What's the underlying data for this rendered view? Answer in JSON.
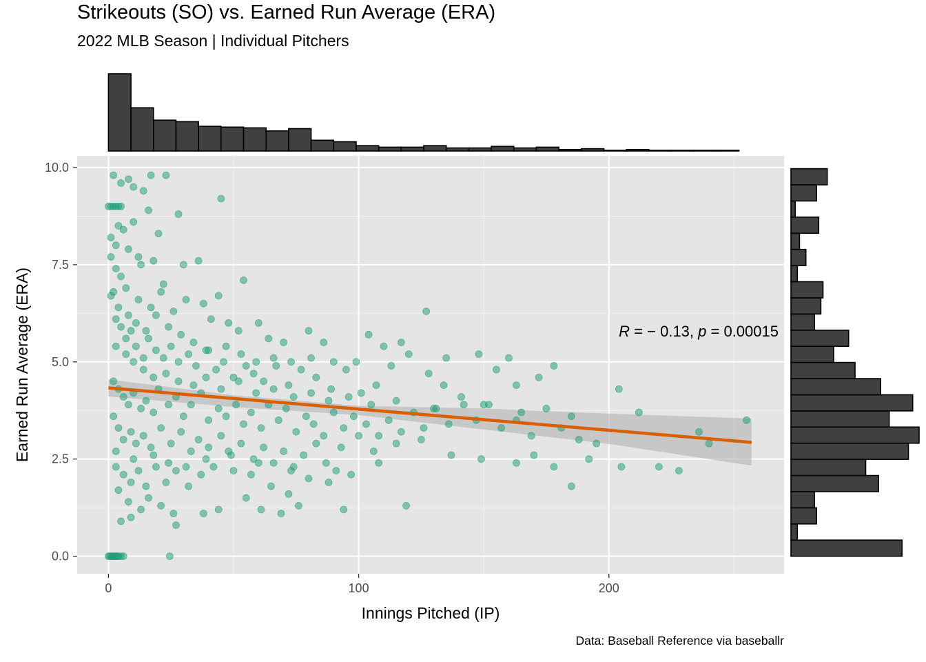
{
  "chart_data": {
    "type": "scatter",
    "title": "Strikeouts (SO) vs. Earned Run Average (ERA)",
    "subtitle": "2022 MLB Season | Individual Pitchers",
    "xlabel": "Innings Pitched (IP)",
    "ylabel": "Earned Run Average (ERA)",
    "caption": "Data: Baseball Reference via baseballr",
    "xlim": [
      -12.5,
      270
    ],
    "ylim": [
      -0.45,
      10.3
    ],
    "x_ticks": [
      0,
      100,
      200
    ],
    "x_tick_labels": [
      "0",
      "100",
      "200"
    ],
    "y_ticks": [
      0,
      2.5,
      5,
      7.5,
      10
    ],
    "y_tick_labels": [
      "0.0",
      "2.5",
      "5.0",
      "7.5",
      "10.0"
    ],
    "grid": true,
    "point_color": "#1b9e77",
    "fit_line_color": "#d95f02",
    "histogram_fill": "#404040",
    "panel_background": "#e5e5e5",
    "annotation": {
      "r_symbol": "R",
      "r_text": " = − 0.13, ",
      "p_symbol": "p",
      "p_text": " = 0.00015"
    },
    "fit_line": {
      "x": [
        0,
        257
      ],
      "y": [
        4.33,
        2.93
      ]
    },
    "confidence_band": {
      "x": [
        0,
        50,
        100,
        150,
        200,
        257
      ],
      "upper": [
        4.55,
        4.14,
        3.87,
        3.8,
        3.67,
        3.54
      ],
      "lower": [
        4.11,
        3.84,
        3.63,
        3.26,
        2.89,
        2.33
      ]
    },
    "x_histogram": {
      "bin_edges": [
        0,
        9,
        18,
        27,
        36,
        45,
        54,
        63,
        72,
        81,
        90,
        99,
        108,
        117,
        126,
        135,
        144,
        153,
        162,
        171,
        180,
        189,
        198,
        207,
        216,
        225,
        234,
        243,
        252,
        257
      ],
      "counts": [
        100,
        56,
        40,
        38,
        32,
        31,
        30,
        26,
        29,
        14,
        12,
        7,
        5,
        5,
        7,
        4,
        4,
        6,
        4,
        5,
        2,
        3,
        1,
        2,
        1,
        1,
        1,
        1,
        0
      ]
    },
    "y_histogram": {
      "bin_edges": [
        0,
        0.67,
        1.34,
        2.01,
        2.68,
        3.35,
        4.02,
        4.69,
        5.36,
        6.03,
        6.7,
        7.37,
        8.04,
        8.71,
        9.38,
        10.05
      ],
      "counts_fine": [
        52,
        3,
        12,
        11,
        41,
        35,
        55,
        60,
        46,
        57,
        42,
        30,
        20,
        27,
        11,
        14,
        15,
        3,
        7,
        4,
        13,
        2,
        12,
        17
      ]
    },
    "points": {
      "zero_ip_era9": 9.0,
      "zero_era_cluster": [
        [
          0,
          0
        ],
        [
          0.5,
          0
        ],
        [
          1,
          0
        ],
        [
          1.5,
          0
        ],
        [
          2,
          0
        ],
        [
          2.5,
          0
        ],
        [
          3,
          0
        ],
        [
          3.5,
          0
        ],
        [
          4,
          0
        ],
        [
          5,
          0
        ],
        [
          6,
          0
        ],
        [
          24.5,
          0
        ]
      ],
      "scattered": [
        [
          2,
          9.8
        ],
        [
          5,
          9.6
        ],
        [
          8,
          9.7
        ],
        [
          10,
          9.5
        ],
        [
          14,
          9.4
        ],
        [
          17,
          9.8
        ],
        [
          23,
          9.8
        ],
        [
          45,
          9.2
        ],
        [
          16,
          8.9
        ],
        [
          4,
          8.5
        ],
        [
          6,
          8.4
        ],
        [
          10,
          8.6
        ],
        [
          20,
          8.3
        ],
        [
          28,
          8.8
        ],
        [
          1,
          8.2
        ],
        [
          3,
          8.0
        ],
        [
          8,
          7.9
        ],
        [
          12,
          7.7
        ],
        [
          13,
          7.5
        ],
        [
          18,
          7.6
        ],
        [
          22,
          7.0
        ],
        [
          30,
          7.5
        ],
        [
          36,
          7.6
        ],
        [
          44,
          6.7
        ],
        [
          54,
          7.1
        ],
        [
          1,
          7.7
        ],
        [
          3,
          7.4
        ],
        [
          5,
          7.2
        ],
        [
          7,
          6.9
        ],
        [
          12,
          6.6
        ],
        [
          17,
          6.4
        ],
        [
          21,
          6.8
        ],
        [
          26,
          6.3
        ],
        [
          31,
          6.6
        ],
        [
          38,
          6.5
        ],
        [
          41,
          6.1
        ],
        [
          48,
          6.0
        ],
        [
          52,
          5.8
        ],
        [
          60,
          6.0
        ],
        [
          64,
          5.6
        ],
        [
          70,
          5.5
        ],
        [
          80,
          5.8
        ],
        [
          86,
          5.5
        ],
        [
          104,
          5.7
        ],
        [
          110,
          5.4
        ],
        [
          127,
          6.3
        ],
        [
          1,
          6.7
        ],
        [
          3,
          6.1
        ],
        [
          5,
          5.9
        ],
        [
          7,
          5.6
        ],
        [
          9,
          5.8
        ],
        [
          11,
          5.4
        ],
        [
          14,
          5.1
        ],
        [
          16,
          5.6
        ],
        [
          19,
          5.3
        ],
        [
          22,
          5.1
        ],
        [
          25,
          5.4
        ],
        [
          28,
          5.0
        ],
        [
          32,
          5.2
        ],
        [
          35,
          4.9
        ],
        [
          39,
          5.3
        ],
        [
          43,
          4.8
        ],
        [
          46,
          5.0
        ],
        [
          50,
          4.6
        ],
        [
          55,
          4.9
        ],
        [
          58,
          4.7
        ],
        [
          62,
          4.5
        ],
        [
          67,
          4.9
        ],
        [
          72,
          4.4
        ],
        [
          77,
          4.8
        ],
        [
          83,
          4.6
        ],
        [
          89,
          4.3
        ],
        [
          95,
          4.8
        ],
        [
          101,
          4.2
        ],
        [
          107,
          4.4
        ],
        [
          113,
          4.9
        ],
        [
          120,
          5.2
        ],
        [
          128,
          4.7
        ],
        [
          134,
          4.4
        ],
        [
          141,
          4.1
        ],
        [
          148,
          5.2
        ],
        [
          155,
          4.8
        ],
        [
          163,
          4.4
        ],
        [
          172,
          4.6
        ],
        [
          178,
          4.9
        ],
        [
          2,
          4.5
        ],
        [
          4,
          4.3
        ],
        [
          6,
          4.1
        ],
        [
          8,
          3.9
        ],
        [
          10,
          4.2
        ],
        [
          13,
          3.8
        ],
        [
          15,
          4.0
        ],
        [
          18,
          3.7
        ],
        [
          20,
          4.3
        ],
        [
          24,
          3.9
        ],
        [
          27,
          4.1
        ],
        [
          30,
          3.6
        ],
        [
          33,
          3.9
        ],
        [
          37,
          4.2
        ],
        [
          40,
          3.5
        ],
        [
          44,
          3.8
        ],
        [
          47,
          3.6
        ],
        [
          51,
          3.9
        ],
        [
          54,
          3.4
        ],
        [
          57,
          3.7
        ],
        [
          61,
          3.3
        ],
        [
          64,
          3.9
        ],
        [
          68,
          3.5
        ],
        [
          71,
          3.8
        ],
        [
          75,
          3.2
        ],
        [
          79,
          3.6
        ],
        [
          82,
          3.4
        ],
        [
          86,
          3.1
        ],
        [
          90,
          3.7
        ],
        [
          94,
          3.3
        ],
        [
          98,
          3.6
        ],
        [
          103,
          3.4
        ],
        [
          108,
          3.1
        ],
        [
          112,
          3.5
        ],
        [
          117,
          3.2
        ],
        [
          122,
          3.7
        ],
        [
          126,
          3.3
        ],
        [
          131,
          3.8
        ],
        [
          136,
          3.4
        ],
        [
          142,
          3.9
        ],
        [
          147,
          3.5
        ],
        [
          152,
          3.9
        ],
        [
          157,
          3.3
        ],
        [
          163,
          3.5
        ],
        [
          169,
          3.1
        ],
        [
          175,
          3.8
        ],
        [
          181,
          3.3
        ],
        [
          188,
          3.0
        ],
        [
          195,
          2.9
        ],
        [
          204,
          4.3
        ],
        [
          212,
          3.7
        ],
        [
          236,
          3.2
        ],
        [
          255,
          3.5
        ],
        [
          2,
          3.6
        ],
        [
          4,
          3.3
        ],
        [
          6,
          3.0
        ],
        [
          9,
          3.2
        ],
        [
          11,
          2.9
        ],
        [
          14,
          3.1
        ],
        [
          17,
          2.8
        ],
        [
          21,
          3.3
        ],
        [
          25,
          2.9
        ],
        [
          29,
          3.2
        ],
        [
          33,
          2.7
        ],
        [
          36,
          3.0
        ],
        [
          40,
          2.8
        ],
        [
          45,
          3.1
        ],
        [
          49,
          2.6
        ],
        [
          53,
          2.9
        ],
        [
          58,
          2.5
        ],
        [
          62,
          2.8
        ],
        [
          66,
          2.4
        ],
        [
          70,
          2.7
        ],
        [
          74,
          2.3
        ],
        [
          78,
          2.6
        ],
        [
          83,
          2.9
        ],
        [
          87,
          2.4
        ],
        [
          93,
          2.8
        ],
        [
          100,
          3.1
        ],
        [
          106,
          2.7
        ],
        [
          115,
          2.9
        ],
        [
          125,
          3.0
        ],
        [
          137,
          2.6
        ],
        [
          149,
          2.5
        ],
        [
          163,
          2.4
        ],
        [
          170,
          2.6
        ],
        [
          178,
          2.3
        ],
        [
          192,
          2.5
        ],
        [
          205,
          2.3
        ],
        [
          220,
          2.3
        ],
        [
          228,
          2.2
        ],
        [
          240,
          2.9
        ],
        [
          3,
          2.3
        ],
        [
          6,
          2.1
        ],
        [
          9,
          1.9
        ],
        [
          12,
          2.2
        ],
        [
          15,
          1.8
        ],
        [
          19,
          2.3
        ],
        [
          23,
          1.9
        ],
        [
          27,
          2.2
        ],
        [
          32,
          1.8
        ],
        [
          37,
          2.1
        ],
        [
          42,
          2.3
        ],
        [
          50,
          2.2
        ],
        [
          57,
          2.1
        ],
        [
          65,
          1.8
        ],
        [
          72,
          1.6
        ],
        [
          80,
          2.0
        ],
        [
          88,
          1.9
        ],
        [
          97,
          2.1
        ],
        [
          119,
          1.3
        ],
        [
          4,
          1.7
        ],
        [
          8,
          1.4
        ],
        [
          13,
          1.2
        ],
        [
          16,
          1.5
        ],
        [
          21,
          1.3
        ],
        [
          26,
          1.1
        ],
        [
          38,
          1.1
        ],
        [
          44,
          1.2
        ],
        [
          55,
          1.5
        ],
        [
          61,
          1.2
        ],
        [
          69,
          1.1
        ],
        [
          76,
          1.3
        ],
        [
          94,
          1.2
        ],
        [
          185,
          1.8
        ],
        [
          5,
          0.9
        ],
        [
          9,
          1.0
        ],
        [
          27,
          0.8
        ],
        [
          3,
          2.7
        ],
        [
          10,
          2.5
        ],
        [
          18,
          2.6
        ],
        [
          24,
          2.4
        ],
        [
          31,
          2.3
        ],
        [
          39,
          2.5
        ],
        [
          48,
          2.7
        ],
        [
          60,
          2.4
        ],
        [
          73,
          2.2
        ],
        [
          91,
          2.2
        ],
        [
          108,
          2.4
        ],
        [
          2,
          6.8
        ],
        [
          4,
          6.4
        ],
        [
          8,
          6.2
        ],
        [
          11,
          6.0
        ],
        [
          15,
          5.8
        ],
        [
          19,
          6.2
        ],
        [
          24,
          5.9
        ],
        [
          29,
          5.7
        ],
        [
          34,
          5.5
        ],
        [
          40,
          5.3
        ],
        [
          47,
          5.4
        ],
        [
          53,
          5.2
        ],
        [
          59,
          5.0
        ],
        [
          66,
          5.1
        ],
        [
          73,
          5.0
        ],
        [
          81,
          5.1
        ],
        [
          90,
          5.0
        ],
        [
          99,
          5.0
        ],
        [
          117,
          5.5
        ],
        [
          135,
          5.1
        ],
        [
          160,
          5.1
        ],
        [
          3,
          5.4
        ],
        [
          7,
          5.2
        ],
        [
          10,
          5.0
        ],
        [
          14,
          4.8
        ],
        [
          18,
          4.6
        ],
        [
          23,
          4.7
        ],
        [
          28,
          4.5
        ],
        [
          34,
          4.4
        ],
        [
          39,
          4.6
        ],
        [
          45,
          4.3
        ],
        [
          52,
          4.5
        ],
        [
          59,
          4.2
        ],
        [
          66,
          4.3
        ],
        [
          74,
          4.1
        ],
        [
          81,
          4.2
        ],
        [
          88,
          4.0
        ],
        [
          96,
          4.1
        ],
        [
          105,
          3.9
        ],
        [
          115,
          4.0
        ],
        [
          130,
          3.8
        ],
        [
          150,
          3.9
        ],
        [
          165,
          3.7
        ],
        [
          185,
          3.6
        ]
      ]
    }
  }
}
